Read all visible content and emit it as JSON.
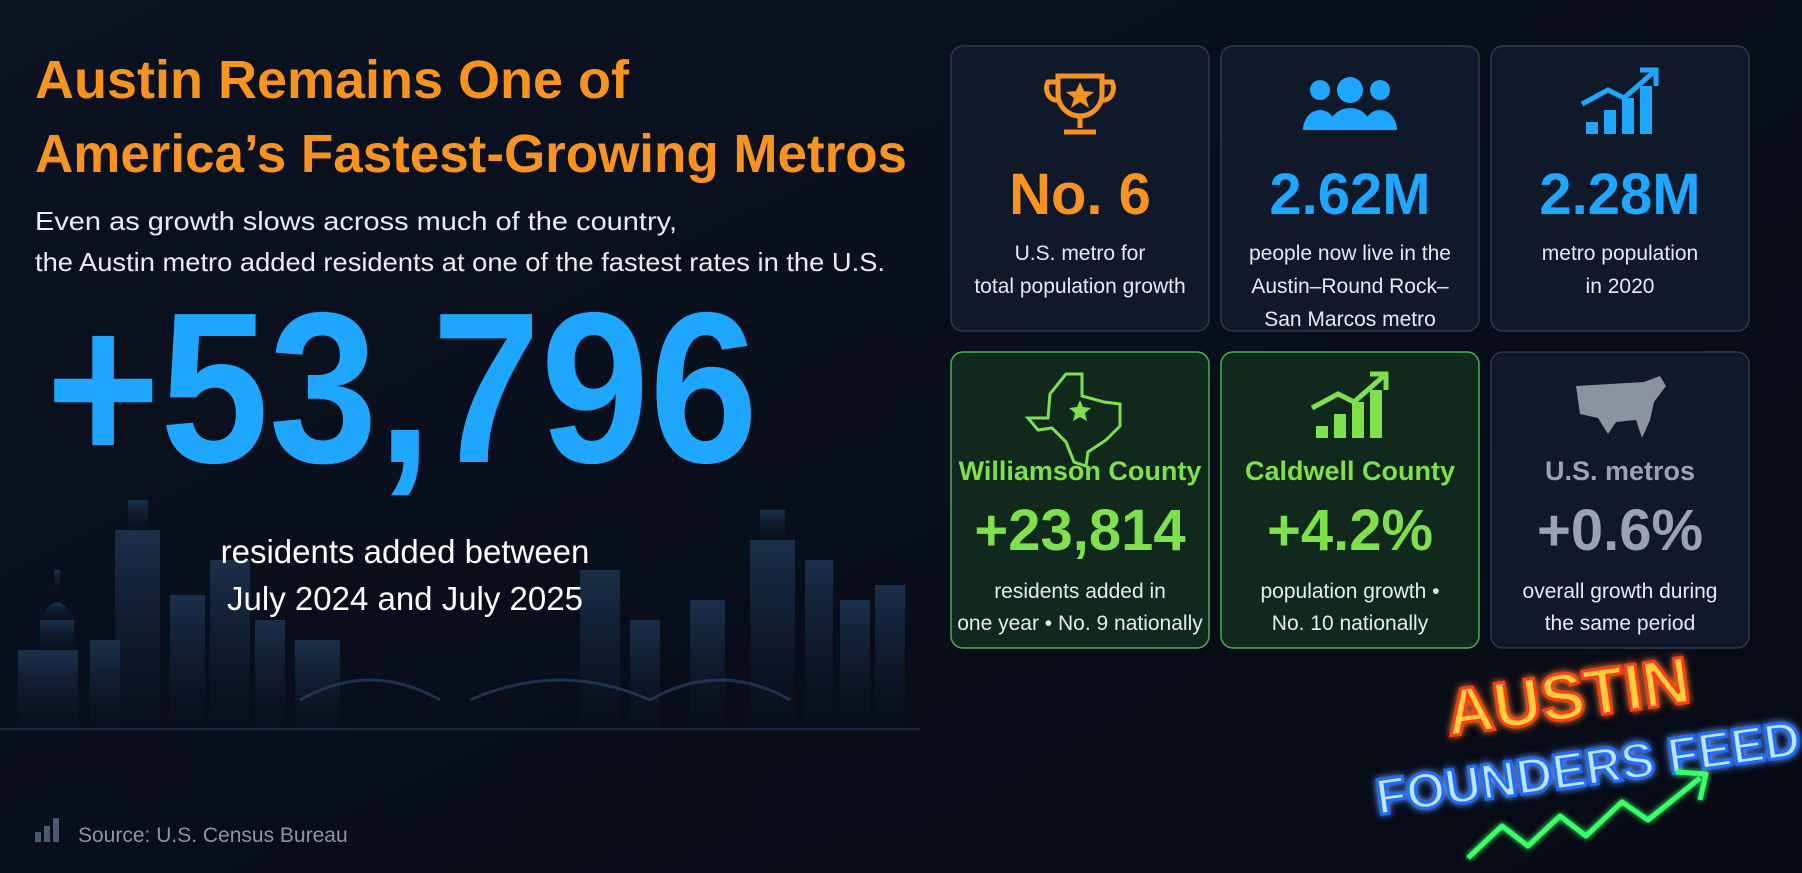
{
  "header": {
    "title": [
      "Austin Remains One of",
      "America’s Fastest-Growing Metros"
    ],
    "subtitle": [
      "Even as growth slows across much of the country,",
      "the Austin metro added residents at one of the fastest rates in the U.S."
    ]
  },
  "hero": {
    "figure": "+53,796",
    "caption": [
      "residents added between",
      "July 2024 and July 2025"
    ]
  },
  "cards": [
    {
      "stat": "No. 6",
      "lines": [
        "U.S. metro for",
        "total population growth"
      ]
    },
    {
      "stat": "2.62M",
      "lines": [
        "people now live in the",
        "Austin–Round Rock–",
        "San Marcos metro"
      ]
    },
    {
      "stat": "2.28M",
      "lines": [
        "metro population",
        "in 2020"
      ]
    },
    {
      "heading": "Williamson County",
      "stat": "+23,814",
      "lines": [
        "residents added in",
        "one year • No. 9 nationally"
      ]
    },
    {
      "heading": "Caldwell County",
      "stat": "+4.2%",
      "lines": [
        "population growth •",
        "No. 10 nationally"
      ]
    },
    {
      "heading": "U.S. metros",
      "stat": "+0.6%",
      "lines": [
        "overall growth during",
        "the same period"
      ]
    }
  ],
  "source": "Source: U.S. Census Bureau",
  "logo": {
    "top": "AUSTIN",
    "bottom": "FOUNDERS FEED"
  }
}
